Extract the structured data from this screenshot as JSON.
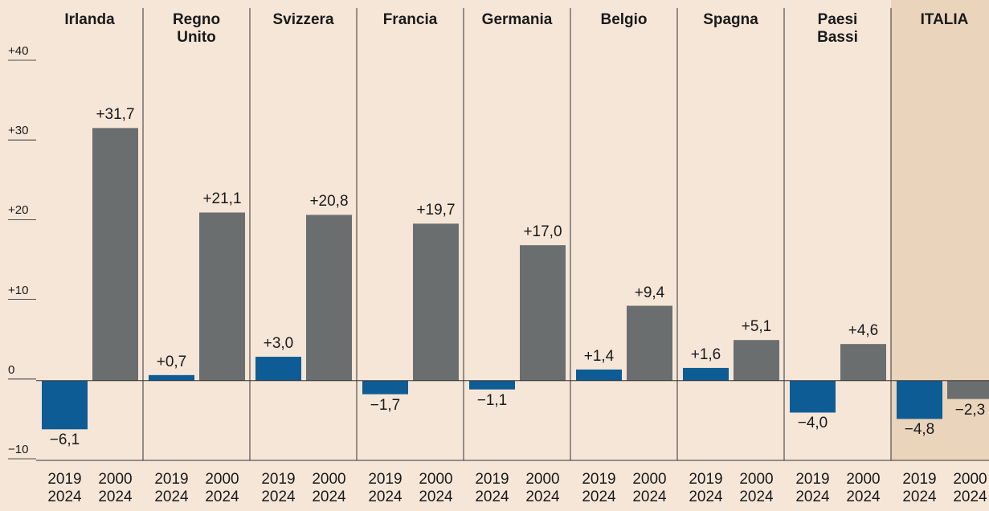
{
  "chart_data": {
    "type": "bar",
    "categories": [
      "Irlanda",
      "Regno Unito",
      "Svizzera",
      "Francia",
      "Germania",
      "Belgio",
      "Spagna",
      "Paesi Bassi",
      "ITALIA"
    ],
    "series": [
      {
        "name": "2019 2024",
        "color": "#0e5c95",
        "values": [
          -6.1,
          0.7,
          3.0,
          -1.7,
          -1.1,
          1.4,
          1.6,
          -4.0,
          -4.8
        ],
        "value_labels": [
          "−6,1",
          "+0,7",
          "+3,0",
          "−1,7",
          "−1,1",
          "+1,4",
          "+1,6",
          "−4,0",
          "−4,8"
        ]
      },
      {
        "name": "2000 2024",
        "color": "#6b6e6e",
        "values": [
          31.7,
          21.1,
          20.8,
          19.7,
          17.0,
          9.4,
          5.1,
          4.6,
          -2.3
        ],
        "value_labels": [
          "+31,7",
          "+21,1",
          "+20,8",
          "+19,7",
          "+17,0",
          "+9,4",
          "+5,1",
          "+4,6",
          "−2,3"
        ]
      }
    ],
    "ylim": [
      -10,
      40
    ],
    "yticks": [
      {
        "value": 40,
        "label": "+40"
      },
      {
        "value": 30,
        "label": "+30"
      },
      {
        "value": 20,
        "label": "+20"
      },
      {
        "value": 10,
        "label": "+10"
      },
      0,
      {
        "value": -10,
        "label": "−10"
      }
    ],
    "grid": false
  }
}
